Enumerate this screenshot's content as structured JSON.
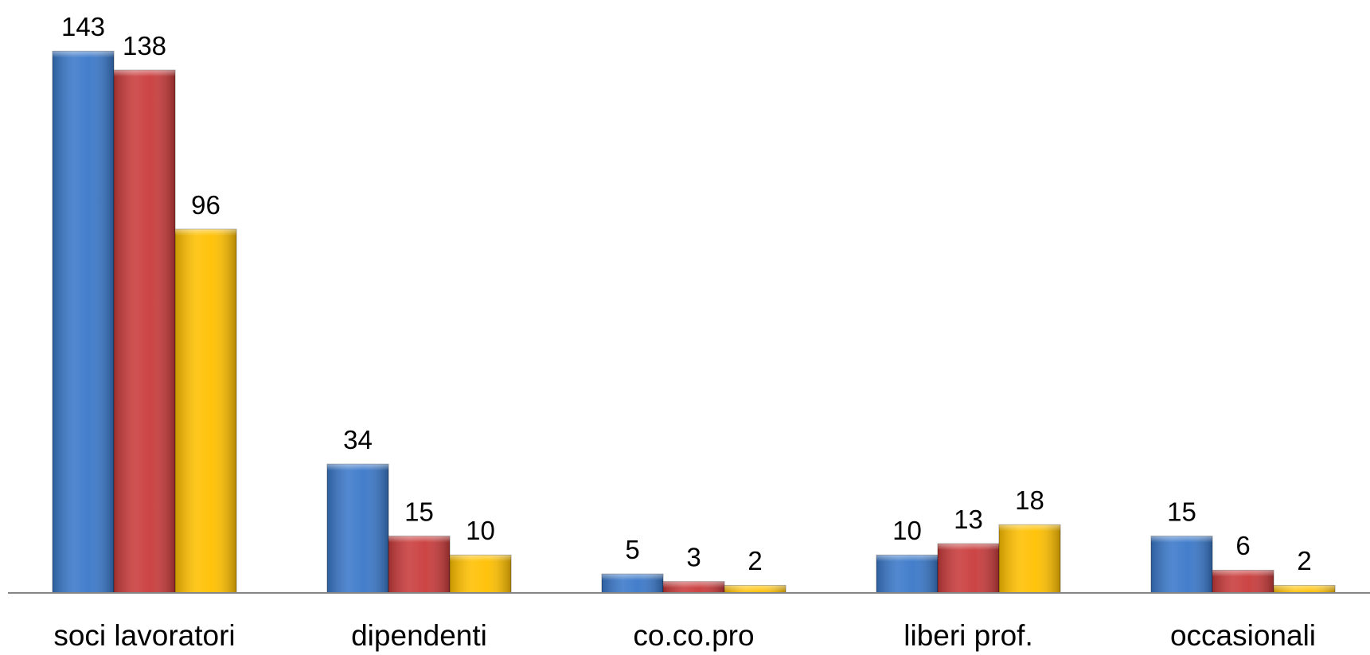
{
  "chart_data": {
    "type": "bar",
    "categories": [
      "soci lavoratori",
      "dipendenti",
      "co.co.pro",
      "liberi prof.",
      "occasionali"
    ],
    "series": [
      {
        "color": "#3a78c9",
        "values": [
          143,
          34,
          5,
          10,
          15
        ]
      },
      {
        "color": "#c93b3b",
        "values": [
          138,
          15,
          3,
          13,
          6
        ]
      },
      {
        "color": "#ffc000",
        "values": [
          96,
          10,
          2,
          18,
          2
        ]
      }
    ],
    "ylim": [
      0,
      150
    ],
    "grid": false
  }
}
